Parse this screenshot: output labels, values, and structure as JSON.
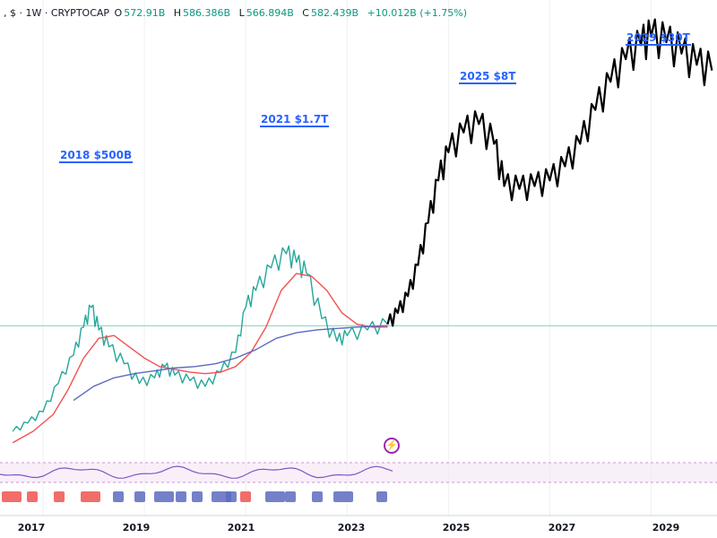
{
  "header": {
    "title": ", $ · 1W · CRYPTOCAP",
    "open_label": "O",
    "open_value": "572.91B",
    "high_label": "H",
    "high_value": "586.386B",
    "low_label": "L",
    "low_value": "566.894B",
    "close_label": "C",
    "close_value": "582.439B",
    "change": "+10.012B (+1.75%)"
  },
  "annotations": [
    {
      "text": "2018 $500B",
      "date": 2018.0
    },
    {
      "text": "2021 $1.7T",
      "date": 2021.8
    },
    {
      "text": "2025 $8T",
      "date": 2025.6
    },
    {
      "text": "2029 $30T",
      "date": 2029.0
    }
  ],
  "colors": {
    "price": "#26a69a",
    "projection": "#000000",
    "ma_fast": "#ef5350",
    "ma_slow": "#5c6bc0",
    "level": "#80cbc4",
    "accent": "#2962ff",
    "rsi": "#7e57c2"
  },
  "chart_data": {
    "type": "line",
    "x_ticks": [
      "2017",
      "2019",
      "2021",
      "2023",
      "2025",
      "2027",
      "2029"
    ],
    "x_tick_values": [
      2017,
      2019,
      2021,
      2023,
      2025,
      2027,
      2029
    ],
    "series": [
      {
        "key": "price",
        "x": [
          2016.4,
          2016.7,
          2017.0,
          2017.3,
          2017.6,
          2017.8,
          2017.95,
          2018.1,
          2018.3,
          2018.6,
          2018.9,
          2019.2,
          2019.4,
          2019.6,
          2019.9,
          2020.2,
          2020.5,
          2020.8,
          2021.0,
          2021.2,
          2021.5,
          2021.8,
          2022.0,
          2022.2,
          2022.5,
          2022.8,
          2023.0,
          2023.4,
          2023.8
        ],
        "y": [
          60,
          90,
          130,
          230,
          330,
          430,
          500,
          420,
          360,
          300,
          230,
          250,
          290,
          260,
          240,
          220,
          270,
          340,
          500,
          560,
          640,
          690,
          660,
          620,
          460,
          380,
          400,
          420,
          440
        ]
      },
      {
        "key": "projection",
        "x": [
          2023.8,
          2024.0,
          2024.2,
          2024.4,
          2024.6,
          2024.8,
          2025.0,
          2025.3,
          2025.6,
          2025.9,
          2026.1,
          2026.4,
          2026.7,
          2027.0,
          2027.3,
          2027.6,
          2027.9,
          2028.2,
          2028.5,
          2028.8,
          2029.0,
          2029.3,
          2029.6,
          2029.9,
          2030.2
        ],
        "y": [
          440,
          480,
          540,
          650,
          800,
          950,
          1050,
          1120,
          1150,
          1080,
          930,
          920,
          930,
          950,
          1000,
          1080,
          1200,
          1300,
          1380,
          1430,
          1460,
          1440,
          1400,
          1360,
          1340
        ]
      },
      {
        "key": "ma_fast",
        "x": [
          2016.4,
          2016.8,
          2017.2,
          2017.5,
          2017.8,
          2018.1,
          2018.4,
          2018.7,
          2019.0,
          2019.3,
          2019.6,
          2019.9,
          2020.2,
          2020.5,
          2020.8,
          2021.1,
          2021.4,
          2021.7,
          2022.0,
          2022.3,
          2022.6,
          2022.9,
          2023.2,
          2023.5,
          2023.8
        ],
        "y": [
          20,
          60,
          120,
          210,
          320,
          390,
          400,
          360,
          320,
          290,
          280,
          270,
          265,
          270,
          290,
          340,
          430,
          560,
          620,
          610,
          560,
          480,
          440,
          430,
          430
        ]
      },
      {
        "key": "ma_slow",
        "x": [
          2017.6,
          2018.0,
          2018.4,
          2018.8,
          2019.2,
          2019.6,
          2020.0,
          2020.4,
          2020.8,
          2021.2,
          2021.6,
          2022.0,
          2022.4,
          2022.8,
          2023.2,
          2023.8
        ],
        "y": [
          170,
          220,
          250,
          265,
          275,
          285,
          290,
          300,
          320,
          350,
          390,
          410,
          420,
          425,
          430,
          435
        ]
      }
    ],
    "level_line": 435,
    "ylim": [
      0,
      1520
    ],
    "xlim": [
      2016.15,
      2030.3
    ]
  }
}
